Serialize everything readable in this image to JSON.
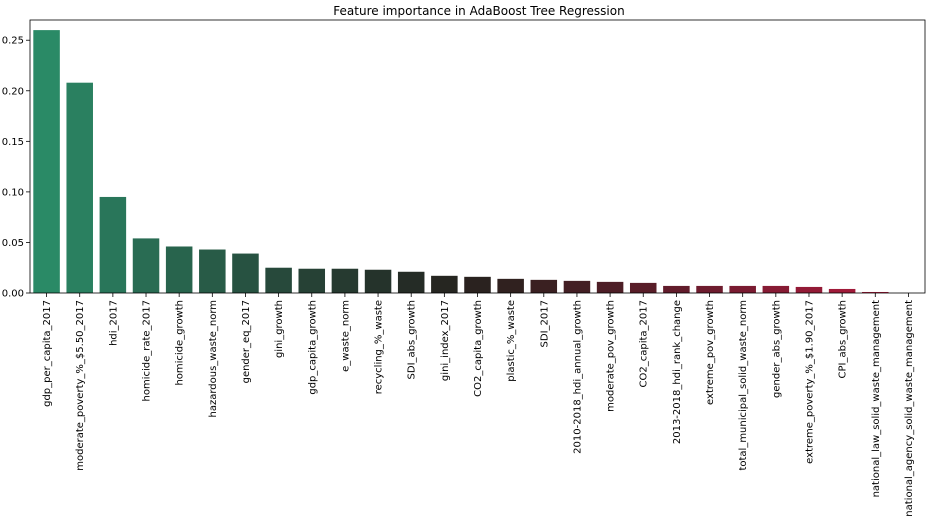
{
  "chart_data": {
    "type": "bar",
    "title": "Feature importance in AdaBoost Tree Regression",
    "xlabel": "",
    "ylabel": "",
    "ylim": [
      0,
      0.27
    ],
    "yticks": [
      0.0,
      0.05,
      0.1,
      0.15,
      0.2,
      0.25
    ],
    "ytick_labels": [
      "0.00",
      "0.05",
      "0.10",
      "0.15",
      "0.20",
      "0.25"
    ],
    "grid": false,
    "categories": [
      "gdp_per_capita_2017",
      "moderate_poverty_%_$5.50_2017",
      "hdi_2017",
      "homicide_rate_2017",
      "homicide_growth",
      "hazardous_waste_norm",
      "gender_eq_2017",
      "gini_growth",
      "gdp_capita_growth",
      "e_waste_norm",
      "recycling_%_waste",
      "SDI_abs_growth",
      "gini_index_2017",
      "CO2_capita_growth",
      "plastic_%_waste",
      "SDI_2017",
      "2010-2018_hdi_annual_growth",
      "moderate_pov_growth",
      "CO2_capita_2017",
      "2013-2018_hdi_rank_change",
      "extreme_pov_growth",
      "total_municipal_solid_waste_norm",
      "gender_abs_growth",
      "extreme_poverty_%_$1.90_2017",
      "CPI_abs_growth",
      "national_law_solid_waste_management",
      "national_agency_solid_waste_management"
    ],
    "values": [
      0.26,
      0.208,
      0.095,
      0.054,
      0.046,
      0.043,
      0.039,
      0.025,
      0.024,
      0.024,
      0.023,
      0.021,
      0.017,
      0.016,
      0.014,
      0.013,
      0.012,
      0.011,
      0.01,
      0.007,
      0.007,
      0.007,
      0.007,
      0.006,
      0.004,
      0.001,
      0.0
    ],
    "colors": [
      "#2a8a66",
      "#2a8060",
      "#29765a",
      "#296c53",
      "#28644d",
      "#285b47",
      "#275241",
      "#27493b",
      "#264135",
      "#263a30",
      "#25332b",
      "#252c26",
      "#262621",
      "#2a221f",
      "#30211f",
      "#3a2021",
      "#431f24",
      "#4d1e26",
      "#581d28",
      "#621c2b",
      "#6e1c2e",
      "#7a1b31",
      "#871b34",
      "#931a36",
      "#a01a39",
      "#ad1a3c",
      "#b9193f"
    ]
  }
}
